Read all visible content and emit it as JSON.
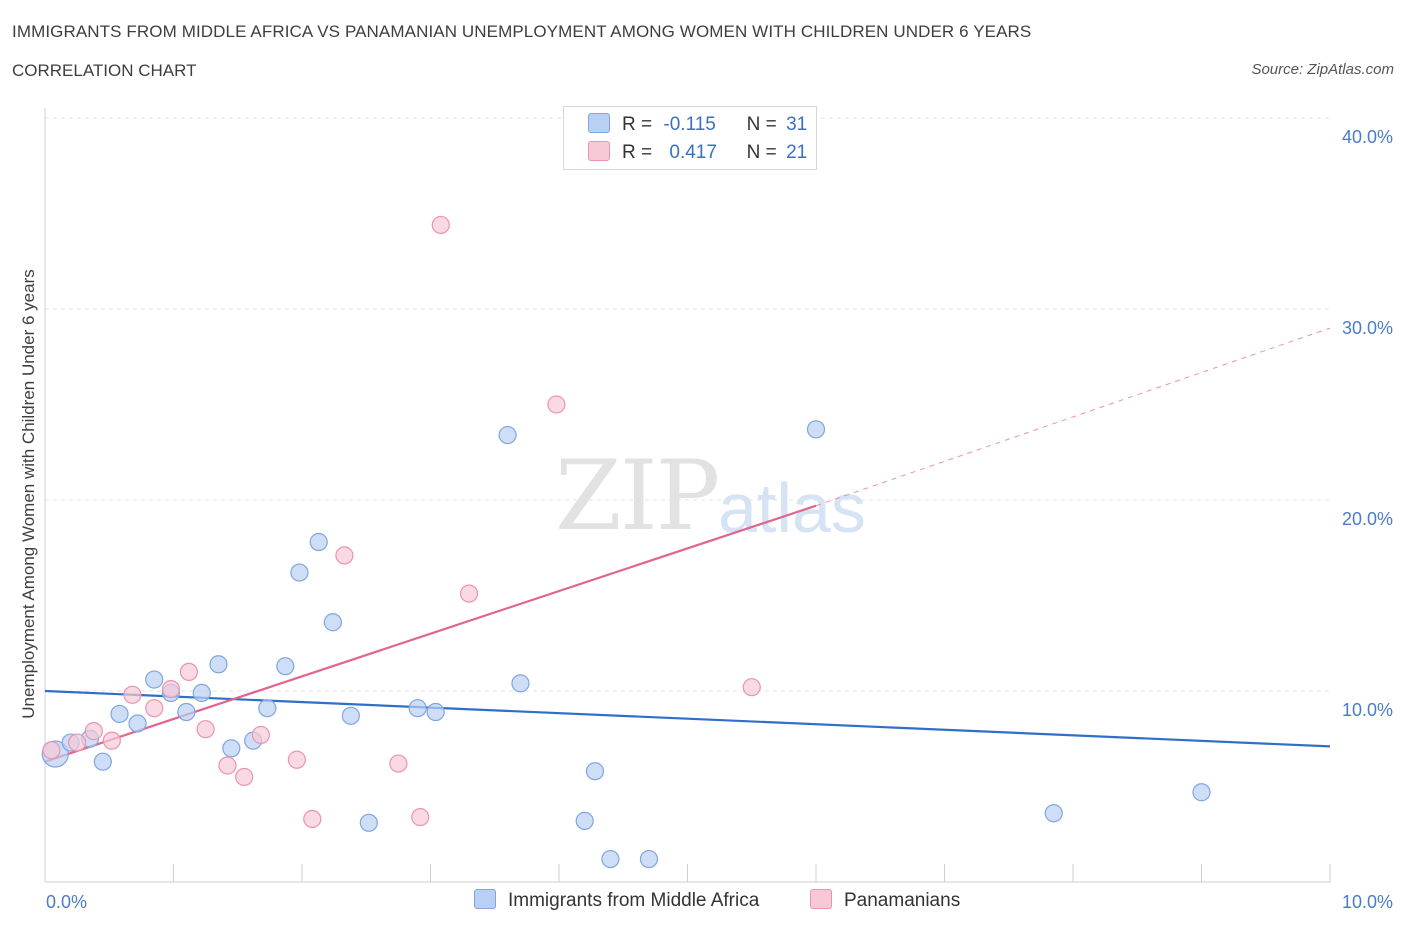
{
  "header": {
    "title": "IMMIGRANTS FROM MIDDLE AFRICA VS PANAMANIAN UNEMPLOYMENT AMONG WOMEN WITH CHILDREN UNDER 6 YEARS",
    "subtitle": "CORRELATION CHART",
    "source": "Source: ZipAtlas.com"
  },
  "watermark": {
    "zip": "ZIP",
    "atlas": "atlas"
  },
  "legend": {
    "rows": [
      {
        "r_label": "R =",
        "r_value": "-0.115",
        "n_label": "N =",
        "n_value": "31"
      },
      {
        "r_label": "R =",
        "r_value": "0.417",
        "n_label": "N =",
        "n_value": "21"
      }
    ]
  },
  "colors": {
    "blue_fill": "#b9d0f3",
    "blue_stroke": "#7fa6df",
    "blue_line": "#2f6fca",
    "pink_fill": "#f7c9d7",
    "pink_stroke": "#ec93b1",
    "pink_line": "#e0658f",
    "tick_text": "#4a7cc9",
    "grid": "#e2e2e2"
  },
  "chart_data": {
    "type": "scatter",
    "xlabel": "",
    "ylabel": "Unemployment Among Women with Children Under 6 years",
    "xlim": [
      0,
      10
    ],
    "ylim": [
      0,
      40
    ],
    "x_tick_labels": [
      "0.0%",
      "10.0%"
    ],
    "y_ticks": [
      10,
      20,
      30,
      40
    ],
    "y_tick_labels": [
      "10.0%",
      "20.0%",
      "30.0%",
      "40.0%"
    ],
    "grid": "horizontal dashed",
    "legend_position": "top-center",
    "series": [
      {
        "name": "Immigrants from Middle Africa",
        "color": "#b9d0f3",
        "points": [
          [
            0.08,
            6.7
          ],
          [
            0.2,
            7.3
          ],
          [
            0.35,
            7.5
          ],
          [
            0.45,
            6.3
          ],
          [
            0.58,
            8.8
          ],
          [
            0.72,
            8.3
          ],
          [
            0.85,
            10.6
          ],
          [
            0.98,
            9.9
          ],
          [
            1.1,
            8.9
          ],
          [
            1.22,
            9.9
          ],
          [
            1.35,
            11.4
          ],
          [
            1.45,
            7.0
          ],
          [
            1.62,
            7.4
          ],
          [
            1.73,
            9.1
          ],
          [
            1.87,
            11.3
          ],
          [
            1.98,
            16.2
          ],
          [
            2.13,
            17.8
          ],
          [
            2.24,
            13.6
          ],
          [
            2.38,
            8.7
          ],
          [
            2.52,
            3.1
          ],
          [
            2.9,
            9.1
          ],
          [
            3.04,
            8.9
          ],
          [
            3.6,
            23.4
          ],
          [
            3.7,
            10.4
          ],
          [
            4.2,
            3.2
          ],
          [
            4.28,
            5.8
          ],
          [
            4.4,
            1.2
          ],
          [
            4.7,
            1.2
          ],
          [
            6.0,
            23.7
          ],
          [
            7.85,
            3.6
          ],
          [
            9.0,
            4.7
          ]
        ]
      },
      {
        "name": "Panamanians",
        "color": "#f7c9d7",
        "points": [
          [
            0.05,
            6.9
          ],
          [
            0.25,
            7.3
          ],
          [
            0.38,
            7.9
          ],
          [
            0.52,
            7.4
          ],
          [
            0.68,
            9.8
          ],
          [
            0.85,
            9.1
          ],
          [
            0.98,
            10.1
          ],
          [
            1.12,
            11.0
          ],
          [
            1.25,
            8.0
          ],
          [
            1.42,
            6.1
          ],
          [
            1.55,
            5.5
          ],
          [
            1.68,
            7.7
          ],
          [
            1.96,
            6.4
          ],
          [
            2.08,
            3.3
          ],
          [
            2.33,
            17.1
          ],
          [
            2.75,
            6.2
          ],
          [
            2.92,
            3.4
          ],
          [
            3.08,
            34.4
          ],
          [
            3.3,
            15.1
          ],
          [
            3.98,
            25.0
          ],
          [
            5.5,
            10.2
          ]
        ]
      }
    ],
    "trend_lines": [
      {
        "series": "Immigrants from Middle Africa",
        "from": [
          0,
          10.0
        ],
        "to": [
          10,
          7.1
        ],
        "style": "solid"
      },
      {
        "series": "Panamanians",
        "from": [
          0,
          6.3
        ],
        "to": [
          6.0,
          19.7
        ],
        "style": "solid",
        "extended_to": [
          10,
          29.0
        ],
        "extended_style": "dashed"
      }
    ]
  },
  "bottom_legend": {
    "items": [
      {
        "label": "Immigrants from Middle Africa"
      },
      {
        "label": "Panamanians"
      }
    ]
  }
}
